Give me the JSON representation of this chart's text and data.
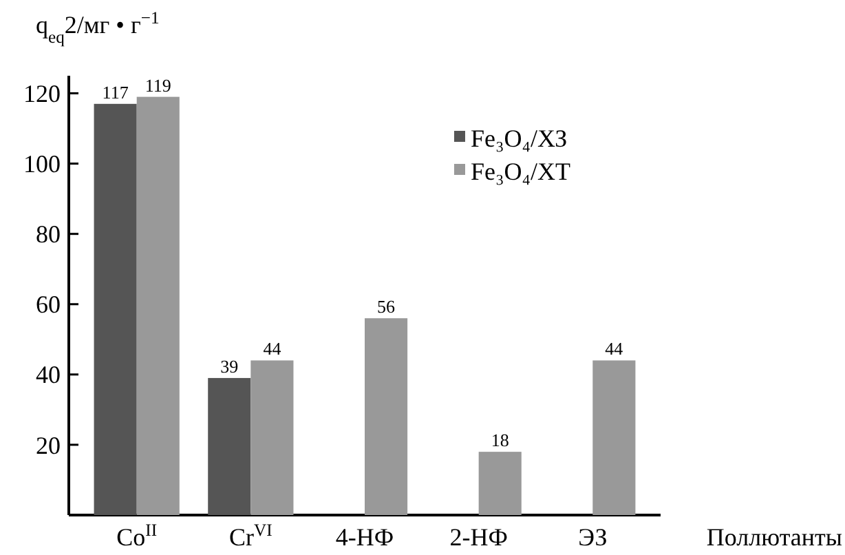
{
  "chart_data": {
    "type": "bar",
    "ylabel": "q$_{eq}$2/мг • г$^{−1}$",
    "xlabel": "Поллютанты",
    "categories": [
      "Co$^{II}$",
      "Cr$^{VI}$",
      "4-НФ",
      "2-НФ",
      "ЭЗ"
    ],
    "series": [
      {
        "name": "Fe₃O₄/ХЗ",
        "color": "#555555",
        "values": [
          117,
          39,
          null,
          null,
          null
        ]
      },
      {
        "name": "Fe₃O₄/ХТ",
        "color": "#999999",
        "values": [
          119,
          44,
          56,
          18,
          44
        ]
      }
    ],
    "ylim": [
      0,
      125
    ],
    "yticks": [
      20,
      40,
      60,
      80,
      100,
      120
    ],
    "grid": false,
    "legend": "top right",
    "data_labels": true
  }
}
